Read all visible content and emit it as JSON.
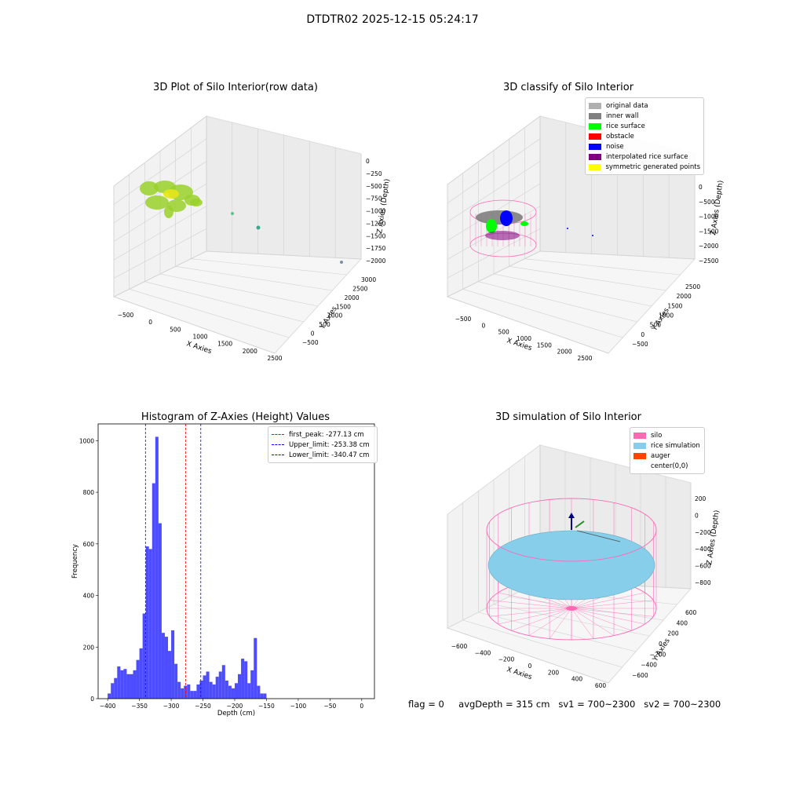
{
  "suptitle": "DTDTR02 2025-12-15 05:24:17",
  "colors": {
    "hist_bar": "#4d4dff",
    "peak_line": "#ff0000",
    "limit_line": "#0000ff",
    "silo": "#ff69b4",
    "rice_simulation": "#87ceeb",
    "auger": "#ff4500",
    "original_data": "#b0b0b0",
    "inner_wall": "#808080",
    "rice_surface": "#00ff00",
    "obstacle": "#ff0000",
    "noise": "#0000ff",
    "interpolated": "#800080",
    "symmetric": "#ffff00"
  },
  "chart_data": [
    {
      "type": "scatter",
      "title": "3D Plot of Silo Interior(row data)",
      "xlabel": "X Axies",
      "ylabel": "Y Axies",
      "zlabel": "Z Axies (Depth)",
      "x_ticks": [
        "−500",
        "0",
        "500",
        "1000",
        "1500",
        "2000",
        "2500"
      ],
      "y_ticks": [
        "−500",
        "0",
        "500",
        "1000",
        "1500",
        "2000",
        "2500",
        "3000"
      ],
      "z_ticks": [
        "0",
        "−250",
        "−500",
        "−750",
        "−1000",
        "−1250",
        "−1500",
        "−1750",
        "−2000"
      ],
      "xlim": [
        -600,
        2700
      ],
      "ylim": [
        -600,
        3100
      ],
      "zlim": [
        -2200,
        100
      ]
    },
    {
      "type": "scatter",
      "title": "3D classify of Silo Interior",
      "xlabel": "X Axies",
      "ylabel": "Y Axies",
      "zlabel": "Z Axies (Depth)",
      "x_ticks": [
        "−500",
        "0",
        "500",
        "1000",
        "1500",
        "2000",
        "2500"
      ],
      "y_ticks": [
        "−500",
        "0",
        "500",
        "1000",
        "1500",
        "2000",
        "2500"
      ],
      "z_ticks": [
        "0",
        "−500",
        "−1000",
        "−1500",
        "−2000",
        "−2500"
      ],
      "legend": [
        {
          "label": "original data",
          "color": "#b0b0b0"
        },
        {
          "label": "inner wall",
          "color": "#808080"
        },
        {
          "label": "rice surface",
          "color": "#00ff00"
        },
        {
          "label": "obstacle",
          "color": "#ff0000"
        },
        {
          "label": "noise",
          "color": "#0000ff"
        },
        {
          "label": "interpolated rice surface",
          "color": "#800080"
        },
        {
          "label": "symmetric generated points",
          "color": "#ffff00"
        }
      ],
      "legend_position": "top-right"
    },
    {
      "type": "bar",
      "title": "Histogram of Z-Axies (Height) Values",
      "xlabel": "Depth (cm)",
      "ylabel": "Frequency",
      "xlim": [
        -415,
        20
      ],
      "ylim": [
        0,
        1065
      ],
      "x_ticks": [
        -400,
        -350,
        -300,
        -250,
        -200,
        -150,
        -100,
        -50,
        0
      ],
      "x_tick_labels": [
        "−400",
        "−350",
        "−300",
        "−250",
        "−200",
        "−150",
        "−100",
        "−50",
        "0"
      ],
      "y_ticks": [
        0,
        200,
        400,
        600,
        800,
        1000
      ],
      "y_tick_labels": [
        "0",
        "200",
        "400",
        "600",
        "800",
        "1000"
      ],
      "bin_start": -400,
      "bin_width": 5,
      "values": [
        20,
        60,
        80,
        125,
        110,
        115,
        95,
        95,
        110,
        150,
        195,
        330,
        590,
        580,
        835,
        1015,
        680,
        255,
        240,
        185,
        265,
        135,
        65,
        40,
        50,
        55,
        30,
        30,
        55,
        70,
        90,
        105,
        65,
        55,
        85,
        105,
        130,
        70,
        50,
        40,
        60,
        95,
        155,
        145,
        60,
        110,
        235,
        50,
        20,
        20
      ],
      "vlines": [
        {
          "x": -277.13,
          "label": "first_peak: -277.13 cm",
          "color": "#ff0000"
        },
        {
          "x": -253.38,
          "label": "Upper_limit: -253.38 cm",
          "color": "#0000ff"
        },
        {
          "x": -340.47,
          "label": "Lower_limit: -340.47 cm",
          "color": "#0000ff"
        }
      ],
      "legend_position": "top-right"
    },
    {
      "type": "scatter",
      "title": "3D simulation of Silo Interior",
      "xlabel": "X Axies",
      "ylabel": "Y Axies",
      "zlabel": "Z Axies (Depth)",
      "x_ticks": [
        "−600",
        "−400",
        "−200",
        "0",
        "200",
        "400",
        "600"
      ],
      "y_ticks": [
        "−600",
        "−400",
        "−200",
        "0",
        "200",
        "400",
        "600"
      ],
      "z_ticks": [
        "200",
        "0",
        "−200",
        "−400",
        "−600",
        "−800"
      ],
      "legend": [
        {
          "label": "silo",
          "color": "#ff69b4"
        },
        {
          "label": "rice simulation",
          "color": "#87ceeb"
        },
        {
          "label": "auger",
          "color": "#ff4500"
        },
        {
          "label": "center(0,0)",
          "color": ""
        }
      ],
      "legend_position": "top-right"
    }
  ],
  "status": {
    "flag": "flag = 0",
    "avg_depth": "avgDepth = 315 cm",
    "sv1": "sv1 = 700~2300",
    "sv2": "sv2 = 700~2300"
  }
}
